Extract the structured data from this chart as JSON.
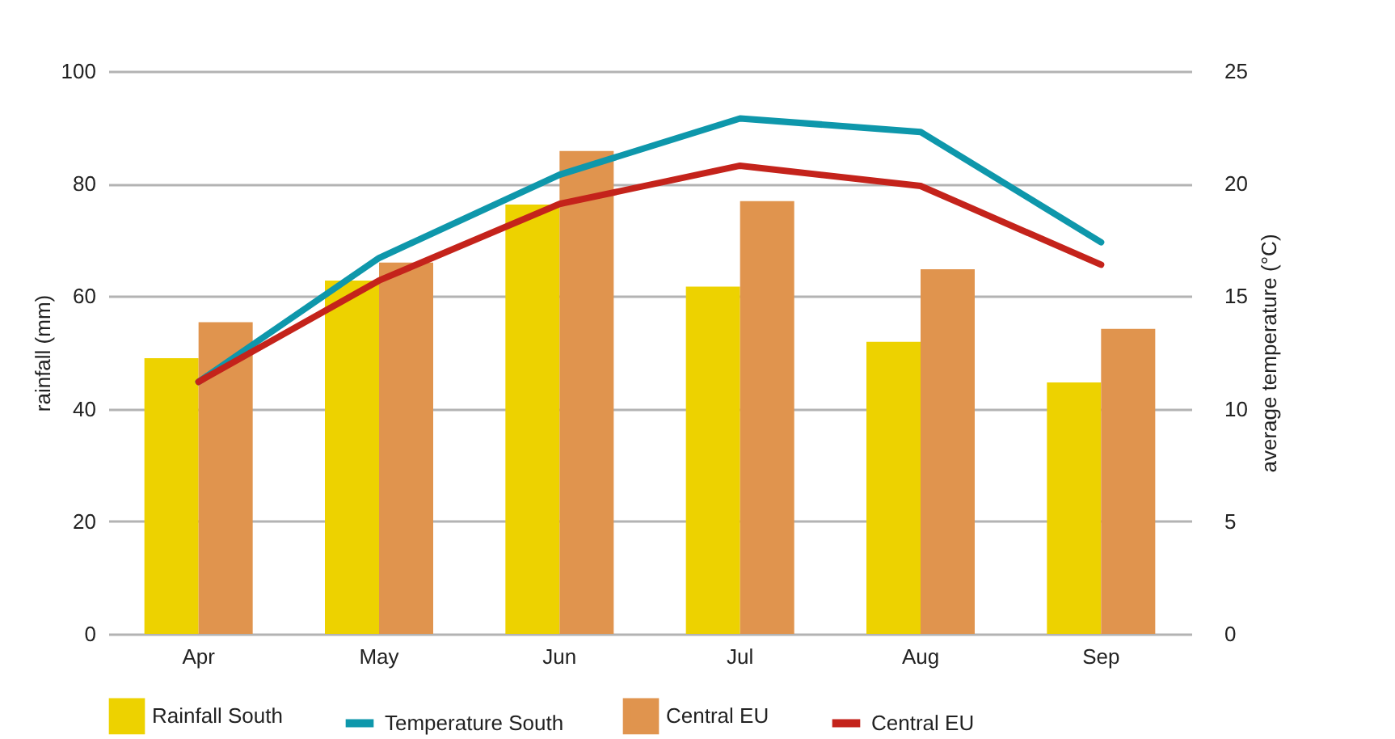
{
  "chart_data": {
    "type": "bar",
    "categories": [
      "Apr",
      "May",
      "Jun",
      "Jul",
      "Aug",
      "Sep"
    ],
    "ylabel": "rainfall (mm)",
    "y2label": "average temperature (°C)",
    "ylim": [
      0,
      100
    ],
    "yticks": [
      0,
      20,
      40,
      60,
      80,
      100
    ],
    "y2lim": [
      0,
      25
    ],
    "y2ticks": [
      0,
      5,
      10,
      15,
      20,
      25
    ],
    "grid": "y",
    "legend": "bottom",
    "series": [
      {
        "name": "Rainfall South",
        "color": "#edd200",
        "values": [
          49.0,
          62.8,
          76.3,
          61.7,
          51.9,
          44.7
        ]
      },
      {
        "name": "Temperature South",
        "type": "line",
        "axis": "y2",
        "color": "#0e97ab",
        "values": [
          11.2,
          16.7,
          20.4,
          22.9,
          22.3,
          17.4
        ]
      },
      {
        "name": "Central EU",
        "color": "#e0944e",
        "values": [
          55.4,
          66.0,
          85.8,
          76.9,
          64.8,
          54.2
        ]
      },
      {
        "name": "Central EU",
        "type": "line",
        "axis": "y2",
        "color": "#c4231b",
        "values": [
          11.2,
          15.7,
          19.1,
          20.8,
          19.9,
          16.4
        ]
      }
    ]
  }
}
